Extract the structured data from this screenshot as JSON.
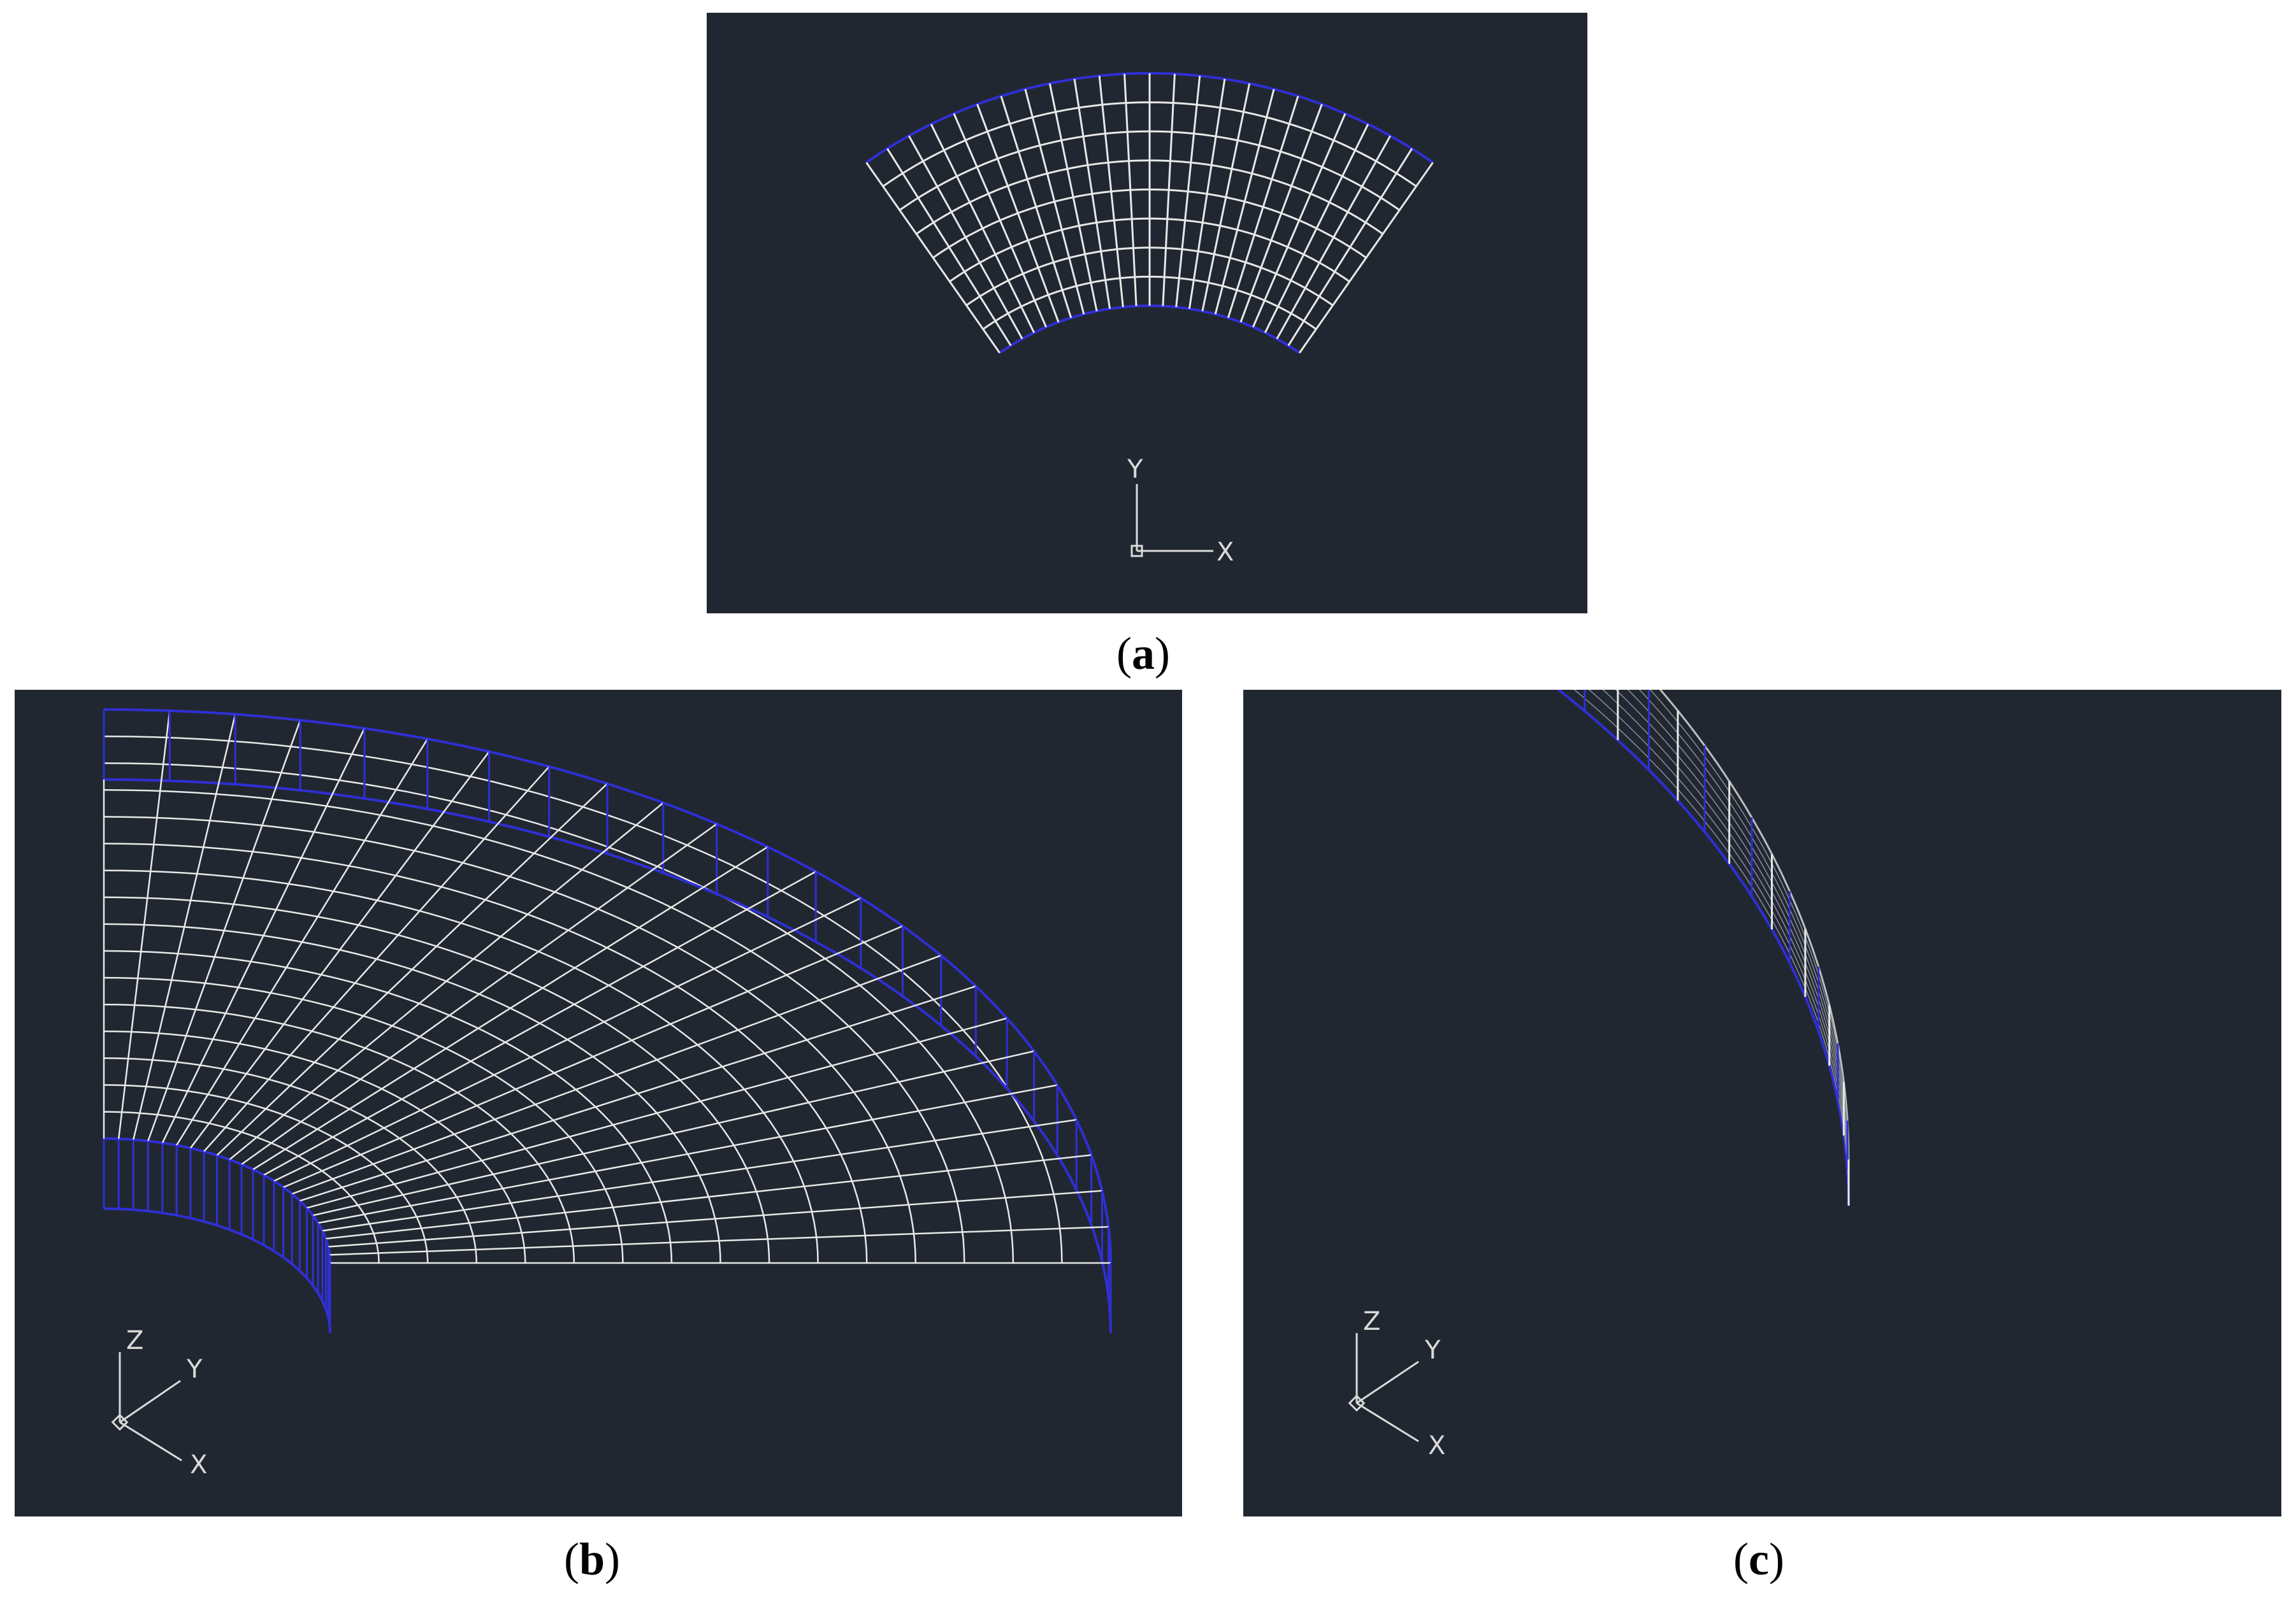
{
  "panels": [
    {
      "id": "a",
      "caption_open": "(",
      "caption_letter": "a",
      "caption_close": ")",
      "view": "top (XY plane)",
      "axes": [
        "Y",
        "X"
      ]
    },
    {
      "id": "b",
      "caption_open": "(",
      "caption_letter": "b",
      "caption_close": ")",
      "view": "isometric",
      "axes": [
        "Z",
        "Y",
        "X"
      ]
    },
    {
      "id": "c",
      "caption_open": "(",
      "caption_letter": "c",
      "caption_close": ")",
      "view": "isometric",
      "axes": [
        "Z",
        "Y",
        "X"
      ]
    }
  ],
  "colors": {
    "background": "#212730",
    "mesh_line": "#e8e8e8",
    "boundary_line": "#2f2fd6",
    "axis_icon": "#d9d9d9"
  },
  "mesh": {
    "angular_divisions": 24,
    "radial_divisions": 8,
    "description_icon": "sector-mesh"
  }
}
